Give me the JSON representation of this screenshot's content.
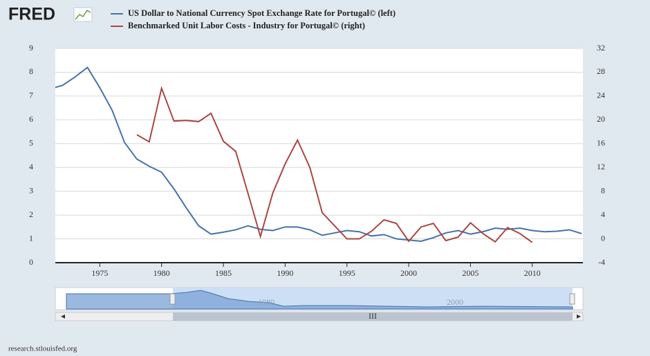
{
  "logo": "FRED",
  "source": "research.stlouisfed.org",
  "navigator_labels": [
    "1980",
    "2000"
  ],
  "scrollbar_label": "III",
  "chart_data": {
    "type": "line",
    "x": [
      1971,
      1972,
      1973,
      1974,
      1975,
      1976,
      1977,
      1978,
      1979,
      1980,
      1981,
      1982,
      1983,
      1984,
      1985,
      1986,
      1987,
      1988,
      1989,
      1990,
      1991,
      1992,
      1993,
      1994,
      1995,
      1996,
      1997,
      1998,
      1999,
      2000,
      2001,
      2002,
      2003,
      2004,
      2005,
      2006,
      2007,
      2008,
      2009,
      2010,
      2011,
      2012,
      2013,
      2014
    ],
    "xlim": [
      1971.4,
      2014.1
    ],
    "xticks": [
      1975,
      1980,
      1985,
      1990,
      1995,
      2000,
      2005,
      2010
    ],
    "ylim": [
      0,
      9
    ],
    "yticks": [
      0,
      1,
      2,
      3,
      4,
      5,
      6,
      7,
      8,
      9
    ],
    "y2lim": [
      -4,
      32
    ],
    "y2ticks": [
      -4,
      0,
      4,
      8,
      12,
      16,
      20,
      24,
      28,
      32
    ],
    "legend": "top-left",
    "series": [
      {
        "name": "US Dollar to National Currency Spot Exchange Rate for Portugal© (left)",
        "color": "#4572a7",
        "values": [
          7.3,
          7.45,
          7.8,
          8.2,
          7.35,
          6.4,
          5.05,
          4.35,
          4.05,
          3.8,
          3.1,
          2.3,
          1.55,
          1.2,
          1.28,
          1.38,
          1.55,
          1.4,
          1.35,
          1.5,
          1.5,
          1.38,
          1.15,
          1.25,
          1.35,
          1.3,
          1.12,
          1.18,
          1.0,
          0.95,
          0.9,
          1.05,
          1.25,
          1.35,
          1.2,
          1.3,
          1.45,
          1.4,
          1.45,
          1.35,
          1.3,
          1.32,
          1.38,
          1.22
        ]
      },
      {
        "name": "Benchmarked Unit Labor Costs - Industry for Portugal© (right)",
        "color": "#aa4643",
        "axis": "y2",
        "values": [
          null,
          null,
          null,
          null,
          null,
          null,
          null,
          17.5,
          16.3,
          25.3,
          19.8,
          19.9,
          19.7,
          21.1,
          16.4,
          14.7,
          7.6,
          0.4,
          7.7,
          12.6,
          16.6,
          12.0,
          4.4,
          2.2,
          0.0,
          0.0,
          1.3,
          3.2,
          2.6,
          -0.4,
          2.0,
          2.6,
          -0.3,
          0.3,
          2.7,
          0.9,
          -0.5,
          1.9,
          0.9,
          -0.6,
          null,
          null,
          null,
          null
        ]
      }
    ]
  }
}
